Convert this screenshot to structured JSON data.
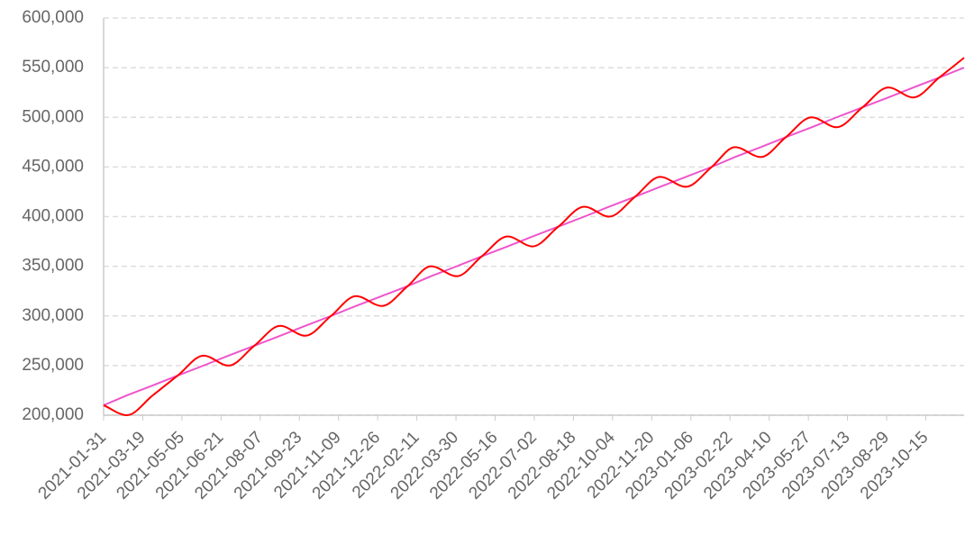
{
  "chart_data": {
    "type": "line",
    "x": [
      "2021-01-31",
      "2021-02-28",
      "2021-03-31",
      "2021-04-30",
      "2021-05-31",
      "2021-06-30",
      "2021-07-31",
      "2021-08-31",
      "2021-09-30",
      "2021-10-31",
      "2021-11-30",
      "2021-12-31",
      "2022-01-31",
      "2022-02-28",
      "2022-03-31",
      "2022-04-30",
      "2022-05-31",
      "2022-06-30",
      "2022-07-31",
      "2022-08-31",
      "2022-09-30",
      "2022-10-31",
      "2022-11-30",
      "2022-12-31",
      "2023-01-31",
      "2023-02-28",
      "2023-03-31",
      "2023-04-30",
      "2023-05-31",
      "2023-06-30",
      "2023-07-31",
      "2023-08-31",
      "2023-09-30",
      "2023-10-31",
      "2023-11-30"
    ],
    "series": [
      {
        "color": "#ff0000",
        "smooth": true,
        "values": [
          210000,
          200000,
          220000,
          240000,
          260000,
          250000,
          270000,
          290000,
          280000,
          300000,
          320000,
          310000,
          330000,
          350000,
          340000,
          360000,
          380000,
          370000,
          390000,
          410000,
          400000,
          420000,
          440000,
          430000,
          450000,
          470000,
          460000,
          480000,
          500000,
          490000,
          510000,
          530000,
          520000,
          540000,
          560000
        ]
      },
      {
        "color": "#ee55cc",
        "smooth": false,
        "values": [
          210000,
          220000,
          230000,
          240000,
          250000,
          260000,
          270000,
          280000,
          290000,
          300000,
          310000,
          320000,
          330000,
          340000,
          350000,
          360000,
          370000,
          380000,
          390000,
          400000,
          410000,
          420000,
          430000,
          440000,
          450000,
          460000,
          470000,
          480000,
          490000,
          500000,
          510000,
          520000,
          530000,
          540000,
          550000
        ]
      }
    ],
    "xlim": [
      "2021-01-31",
      "2023-11-30"
    ],
    "xticks": [
      "2021-01-31",
      "2021-03-19",
      "2021-05-05",
      "2021-06-21",
      "2021-08-07",
      "2021-09-23",
      "2021-11-09",
      "2021-12-26",
      "2022-02-11",
      "2022-03-30",
      "2022-05-16",
      "2022-07-02",
      "2022-08-18",
      "2022-10-04",
      "2022-11-20",
      "2023-01-06",
      "2023-02-22",
      "2023-04-10",
      "2023-05-27",
      "2023-07-13",
      "2023-08-29",
      "2023-10-15"
    ],
    "ylim": [
      200000,
      600000
    ],
    "yticks": [
      {
        "value": 200000,
        "label": "200,000"
      },
      {
        "value": 250000,
        "label": "250,000"
      },
      {
        "value": 300000,
        "label": "300,000"
      },
      {
        "value": 350000,
        "label": "350,000"
      },
      {
        "value": 400000,
        "label": "400,000"
      },
      {
        "value": 450000,
        "label": "450,000"
      },
      {
        "value": 500000,
        "label": "500,000"
      },
      {
        "value": 550000,
        "label": "550,000"
      },
      {
        "value": 600000,
        "label": "600,000"
      }
    ],
    "grid": true
  }
}
